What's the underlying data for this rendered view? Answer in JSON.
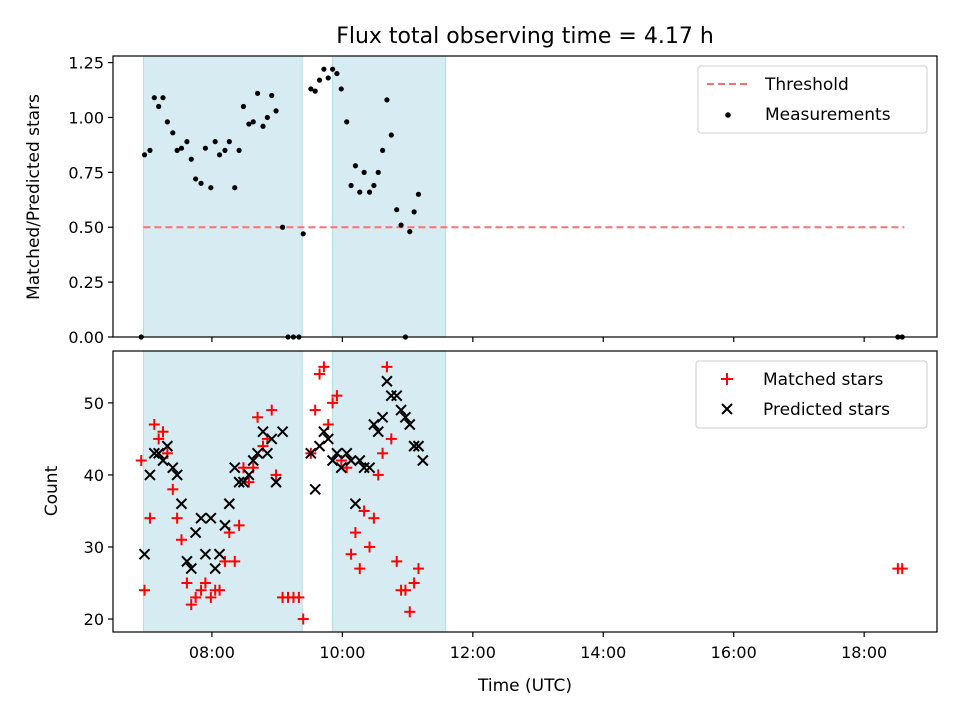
{
  "chart_data": [
    {
      "type": "scatter",
      "title": "Flux total observing time = 4.17 h",
      "xlabel": "",
      "ylabel": "Matched/Predicted stars",
      "xlim": [
        "06:29",
        "19:07"
      ],
      "ylim": [
        0,
        1.28
      ],
      "xticks": [
        "08:00",
        "10:00",
        "12:00",
        "14:00",
        "16:00",
        "18:00"
      ],
      "yticks": [
        0.0,
        0.25,
        0.5,
        0.75,
        1.0,
        1.25
      ],
      "ytick_labels": [
        "0.00",
        "0.25",
        "0.50",
        "0.75",
        "1.00",
        "1.25"
      ],
      "grid": false,
      "legend": "top-right",
      "shaded_intervals": [
        [
          "06:57",
          "09:23"
        ],
        [
          "09:51",
          "11:35"
        ]
      ],
      "threshold_line": {
        "name": "Threshold",
        "y": 0.5,
        "x": [
          "06:57",
          "18:37"
        ],
        "color": "#ff7070",
        "style": "dashed"
      },
      "series": [
        {
          "name": "Measurements",
          "marker": "dot",
          "color": "#000000",
          "points": [
            [
              "06:55",
              0
            ],
            [
              "06:58",
              0.83
            ],
            [
              "07:03",
              0.85
            ],
            [
              "07:07",
              1.09
            ],
            [
              "07:11",
              1.05
            ],
            [
              "07:15",
              1.09
            ],
            [
              "07:19",
              0.98
            ],
            [
              "07:24",
              0.93
            ],
            [
              "07:28",
              0.85
            ],
            [
              "07:32",
              0.86
            ],
            [
              "07:37",
              0.89
            ],
            [
              "07:41",
              0.81
            ],
            [
              "07:45",
              0.72
            ],
            [
              "07:50",
              0.7
            ],
            [
              "07:54",
              0.86
            ],
            [
              "07:59",
              0.68
            ],
            [
              "08:03",
              0.89
            ],
            [
              "08:07",
              0.83
            ],
            [
              "08:12",
              0.85
            ],
            [
              "08:16",
              0.89
            ],
            [
              "08:21",
              0.68
            ],
            [
              "08:25",
              0.85
            ],
            [
              "08:29",
              1.05
            ],
            [
              "08:34",
              0.97
            ],
            [
              "08:38",
              0.98
            ],
            [
              "08:42",
              1.11
            ],
            [
              "08:47",
              0.96
            ],
            [
              "08:51",
              1.0
            ],
            [
              "08:55",
              1.1
            ],
            [
              "08:59",
              1.03
            ],
            [
              "09:05",
              0.5
            ],
            [
              "09:10",
              0
            ],
            [
              "09:15",
              0
            ],
            [
              "09:20",
              0
            ],
            [
              "09:24",
              0.47
            ],
            [
              "09:31",
              1.13
            ],
            [
              "09:35",
              1.12
            ],
            [
              "09:39",
              1.17
            ],
            [
              "09:43",
              1.22
            ],
            [
              "09:47",
              1.18
            ],
            [
              "09:51",
              1.22
            ],
            [
              "09:55",
              1.2
            ],
            [
              "09:59",
              1.13
            ],
            [
              "10:04",
              0.98
            ],
            [
              "10:08",
              0.69
            ],
            [
              "10:12",
              0.78
            ],
            [
              "10:16",
              0.66
            ],
            [
              "10:20",
              0.75
            ],
            [
              "10:25",
              0.66
            ],
            [
              "10:29",
              0.69
            ],
            [
              "10:33",
              0.75
            ],
            [
              "10:37",
              0.85
            ],
            [
              "10:41",
              1.08
            ],
            [
              "10:45",
              0.92
            ],
            [
              "10:50",
              0.58
            ],
            [
              "10:54",
              0.51
            ],
            [
              "10:58",
              0
            ],
            [
              "11:02",
              0.48
            ],
            [
              "11:06",
              0.57
            ],
            [
              "11:10",
              0.65
            ],
            [
              "18:31",
              0
            ],
            [
              "18:35",
              0
            ]
          ]
        }
      ]
    },
    {
      "type": "scatter",
      "title": "",
      "xlabel": "Time (UTC)",
      "ylabel": "Count",
      "xlim": [
        "06:29",
        "19:07"
      ],
      "ylim": [
        18.2,
        57.2
      ],
      "xticks": [
        "08:00",
        "10:00",
        "12:00",
        "14:00",
        "16:00",
        "18:00"
      ],
      "yticks": [
        20,
        30,
        40,
        50
      ],
      "ytick_labels": [
        "20",
        "30",
        "40",
        "50"
      ],
      "grid": false,
      "legend": "top-right",
      "shaded_intervals": [
        [
          "06:57",
          "09:23"
        ],
        [
          "09:51",
          "11:35"
        ]
      ],
      "series": [
        {
          "name": "Matched stars",
          "marker": "plus",
          "color": "#ff0000",
          "points": [
            [
              "06:55",
              42
            ],
            [
              "06:58",
              24
            ],
            [
              "07:03",
              34
            ],
            [
              "07:07",
              47
            ],
            [
              "07:11",
              45
            ],
            [
              "07:15",
              46
            ],
            [
              "07:19",
              43
            ],
            [
              "07:24",
              38
            ],
            [
              "07:28",
              34
            ],
            [
              "07:32",
              31
            ],
            [
              "07:37",
              25
            ],
            [
              "07:41",
              22
            ],
            [
              "07:45",
              23
            ],
            [
              "07:50",
              24
            ],
            [
              "07:54",
              25
            ],
            [
              "07:59",
              23
            ],
            [
              "08:03",
              24
            ],
            [
              "08:07",
              24
            ],
            [
              "08:12",
              28
            ],
            [
              "08:16",
              32
            ],
            [
              "08:21",
              28
            ],
            [
              "08:25",
              33
            ],
            [
              "08:29",
              41
            ],
            [
              "08:34",
              39
            ],
            [
              "08:38",
              41
            ],
            [
              "08:42",
              48
            ],
            [
              "08:47",
              44
            ],
            [
              "08:51",
              45
            ],
            [
              "08:55",
              49
            ],
            [
              "08:59",
              40
            ],
            [
              "09:05",
              23
            ],
            [
              "09:10",
              23
            ],
            [
              "09:15",
              23
            ],
            [
              "09:20",
              23
            ],
            [
              "09:24",
              20
            ],
            [
              "09:31",
              43
            ],
            [
              "09:35",
              49
            ],
            [
              "09:39",
              54
            ],
            [
              "09:43",
              55
            ],
            [
              "09:47",
              47
            ],
            [
              "09:51",
              50
            ],
            [
              "09:55",
              51
            ],
            [
              "09:59",
              42
            ],
            [
              "10:04",
              41
            ],
            [
              "10:08",
              29
            ],
            [
              "10:12",
              32
            ],
            [
              "10:16",
              27
            ],
            [
              "10:20",
              35
            ],
            [
              "10:25",
              30
            ],
            [
              "10:29",
              34
            ],
            [
              "10:33",
              40
            ],
            [
              "10:37",
              43
            ],
            [
              "10:41",
              55
            ],
            [
              "10:45",
              45
            ],
            [
              "10:50",
              28
            ],
            [
              "10:54",
              24
            ],
            [
              "10:58",
              24
            ],
            [
              "11:02",
              21
            ],
            [
              "11:06",
              25
            ],
            [
              "11:10",
              27
            ],
            [
              "18:31",
              27
            ],
            [
              "18:35",
              27
            ]
          ]
        },
        {
          "name": "Predicted stars",
          "marker": "x",
          "color": "#000000",
          "points": [
            [
              "06:58",
              29
            ],
            [
              "07:03",
              40
            ],
            [
              "07:07",
              43
            ],
            [
              "07:11",
              43
            ],
            [
              "07:15",
              42
            ],
            [
              "07:19",
              44
            ],
            [
              "07:24",
              41
            ],
            [
              "07:28",
              40
            ],
            [
              "07:32",
              36
            ],
            [
              "07:37",
              28
            ],
            [
              "07:41",
              27
            ],
            [
              "07:45",
              32
            ],
            [
              "07:50",
              34
            ],
            [
              "07:54",
              29
            ],
            [
              "07:59",
              34
            ],
            [
              "08:03",
              27
            ],
            [
              "08:07",
              29
            ],
            [
              "08:12",
              33
            ],
            [
              "08:16",
              36
            ],
            [
              "08:21",
              41
            ],
            [
              "08:25",
              39
            ],
            [
              "08:29",
              39
            ],
            [
              "08:34",
              40
            ],
            [
              "08:38",
              42
            ],
            [
              "08:42",
              43
            ],
            [
              "08:47",
              46
            ],
            [
              "08:51",
              43
            ],
            [
              "08:55",
              45
            ],
            [
              "08:59",
              39
            ],
            [
              "09:05",
              46
            ],
            [
              "09:31",
              43
            ],
            [
              "09:35",
              38
            ],
            [
              "09:39",
              44
            ],
            [
              "09:43",
              46
            ],
            [
              "09:47",
              45
            ],
            [
              "09:51",
              42
            ],
            [
              "09:55",
              43
            ],
            [
              "09:59",
              41
            ],
            [
              "10:04",
              43
            ],
            [
              "10:08",
              42
            ],
            [
              "10:12",
              36
            ],
            [
              "10:16",
              42
            ],
            [
              "10:20",
              41
            ],
            [
              "10:25",
              41
            ],
            [
              "10:29",
              47
            ],
            [
              "10:33",
              46
            ],
            [
              "10:37",
              48
            ],
            [
              "10:41",
              53
            ],
            [
              "10:45",
              51
            ],
            [
              "10:50",
              51
            ],
            [
              "10:54",
              49
            ],
            [
              "10:58",
              48
            ],
            [
              "11:02",
              47
            ],
            [
              "11:06",
              44
            ],
            [
              "11:10",
              44
            ],
            [
              "11:14",
              42
            ]
          ]
        }
      ]
    }
  ],
  "colors": {
    "shade": "#add8e6",
    "axes": "#000000",
    "threshold": "#ff7070",
    "matched": "#ff0000",
    "predicted": "#000000",
    "measurements": "#000000"
  }
}
